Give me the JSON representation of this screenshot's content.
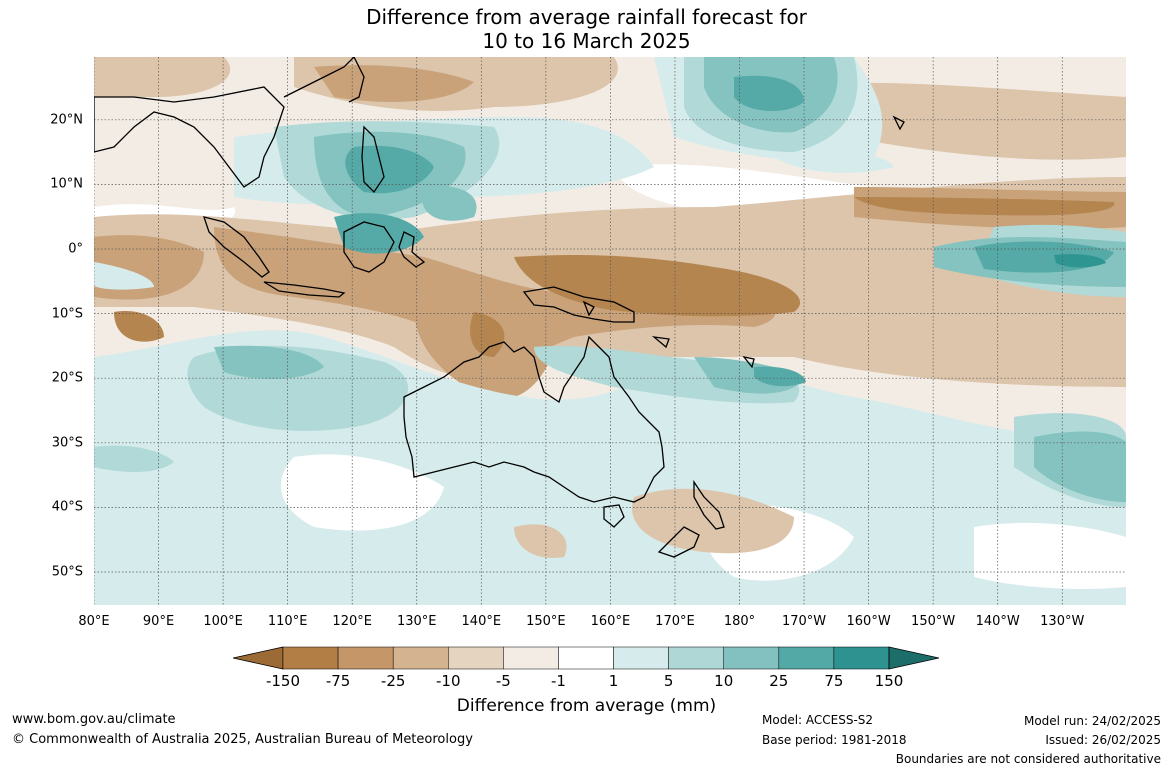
{
  "title": {
    "line1": "Difference from average rainfall forecast for",
    "line2": "10 to 16 March 2025"
  },
  "axes": {
    "lat_labels": [
      "20°N",
      "10°N",
      "0°",
      "10°S",
      "20°S",
      "30°S",
      "40°S",
      "50°S"
    ],
    "lon_labels": [
      "80°E",
      "90°E",
      "100°E",
      "110°E",
      "120°E",
      "130°E",
      "140°E",
      "150°E",
      "160°E",
      "170°E",
      "180°",
      "170°W",
      "160°W",
      "150°W",
      "140°W",
      "130°W"
    ]
  },
  "colorbar": {
    "ticks": [
      "-150",
      "-75",
      "-25",
      "-10",
      "-5",
      "-1",
      "1",
      "5",
      "10",
      "25",
      "75",
      "150"
    ],
    "colors": [
      "#9c6a34",
      "#b37e46",
      "#c49668",
      "#d4b391",
      "#e5d4c0",
      "#f3ece5",
      "#ffffff",
      "#d6ebeb",
      "#aed7d6",
      "#82c1bf",
      "#53a9a6",
      "#2e9390",
      "#1d6e6b"
    ],
    "label": "Difference from average (mm)"
  },
  "footer": {
    "website": "www.bom.gov.au/climate",
    "copyright": "© Commonwealth of Australia 2025, Australian Bureau of Meteorology",
    "model": "Model: ACCESS-S2",
    "base_period": "Base period: 1981-2018",
    "model_run": "Model run: 24/02/2025",
    "issued": "Issued: 26/02/2025",
    "disclaimer": "Boundaries are not considered authoritative"
  },
  "legend_colors": {
    "dry_strong": "#b5854f",
    "dry_mid": "#c9a27a",
    "dry_light": "#dcc5ab",
    "dry_faint": "#efe4da",
    "wet_faint": "#d6ebeb",
    "wet_light": "#b0d9d7",
    "wet_mid": "#84c3c0",
    "wet_strong": "#55aaa7",
    "wet_max": "#2f9591"
  }
}
